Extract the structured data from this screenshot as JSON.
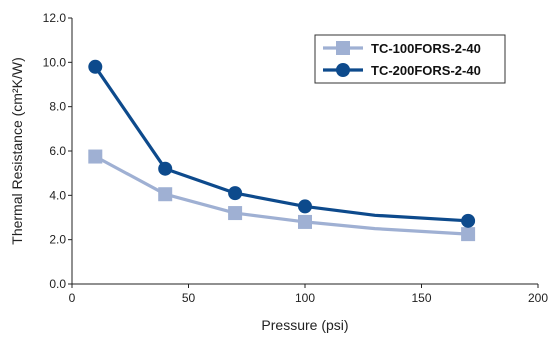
{
  "chart_data": {
    "type": "line",
    "xlabel": "Pressure (psi)",
    "ylabel": "Thermal Resistance (cm²K/W)",
    "xlim": [
      0,
      200
    ],
    "ylim": [
      0,
      12
    ],
    "x_ticks": [
      0,
      50,
      100,
      150,
      200
    ],
    "x_tick_labels": [
      "0",
      "50",
      "100",
      "150",
      "200"
    ],
    "y_ticks": [
      0,
      2,
      4,
      6,
      8,
      10,
      12
    ],
    "y_tick_labels": [
      "0.0",
      "2.0",
      "4.0",
      "6.0",
      "8.0",
      "10.0",
      "12.0"
    ],
    "grid": false,
    "legend_position": "top-right",
    "series": [
      {
        "name": "TC-100FORS-2-40",
        "color": "#9fb0d3",
        "marker": "square",
        "line_x": [
          10,
          40,
          70,
          100,
          130,
          170
        ],
        "line_y": [
          5.75,
          4.05,
          3.2,
          2.8,
          2.5,
          2.25
        ],
        "marker_x": [
          10,
          40,
          70,
          100,
          170
        ],
        "marker_y": [
          5.75,
          4.05,
          3.2,
          2.8,
          2.25
        ]
      },
      {
        "name": "TC-200FORS-2-40",
        "color": "#0d4a8c",
        "marker": "circle",
        "line_x": [
          10,
          40,
          70,
          100,
          130,
          170
        ],
        "line_y": [
          9.8,
          5.2,
          4.1,
          3.5,
          3.1,
          2.85
        ],
        "marker_x": [
          10,
          40,
          70,
          100,
          170
        ],
        "marker_y": [
          9.8,
          5.2,
          4.1,
          3.5,
          2.85
        ]
      }
    ]
  }
}
